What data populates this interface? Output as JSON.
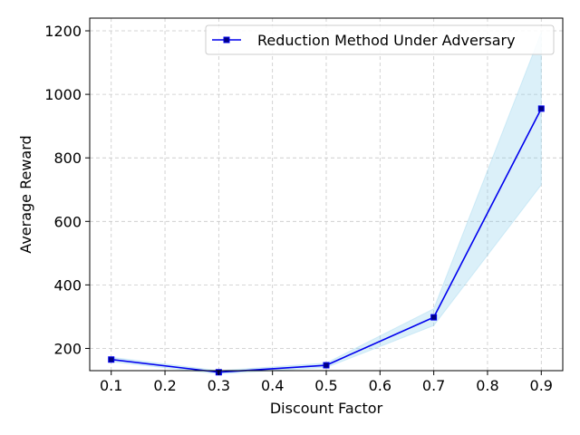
{
  "chart_data": {
    "type": "line",
    "title": "",
    "xlabel": "Discount Factor",
    "ylabel": "Average Reward",
    "xlim": [
      0.06,
      0.94
    ],
    "ylim": [
      130,
      1240
    ],
    "xticks": [
      0.1,
      0.2,
      0.3,
      0.4,
      0.5,
      0.6,
      0.7,
      0.8,
      0.9
    ],
    "xtick_labels": [
      "0.1",
      "0.2",
      "0.3",
      "0.4",
      "0.5",
      "0.6",
      "0.7",
      "0.8",
      "0.9"
    ],
    "yticks": [
      200,
      400,
      600,
      800,
      1000,
      1200
    ],
    "ytick_labels": [
      "200",
      "400",
      "600",
      "800",
      "1000",
      "1200"
    ],
    "grid": true,
    "legend_position": "top-right",
    "series": [
      {
        "name": "Reduction Method Under Adversary",
        "color": "#0000ee",
        "marker_color": "#000080",
        "marker": "square",
        "band_color": "#87ceeb",
        "x": [
          0.1,
          0.3,
          0.5,
          0.7,
          0.9
        ],
        "y": [
          165,
          125,
          147,
          298,
          955
        ],
        "lower": [
          158,
          120,
          140,
          272,
          715
        ],
        "upper": [
          172,
          130,
          154,
          325,
          1195
        ]
      }
    ]
  }
}
